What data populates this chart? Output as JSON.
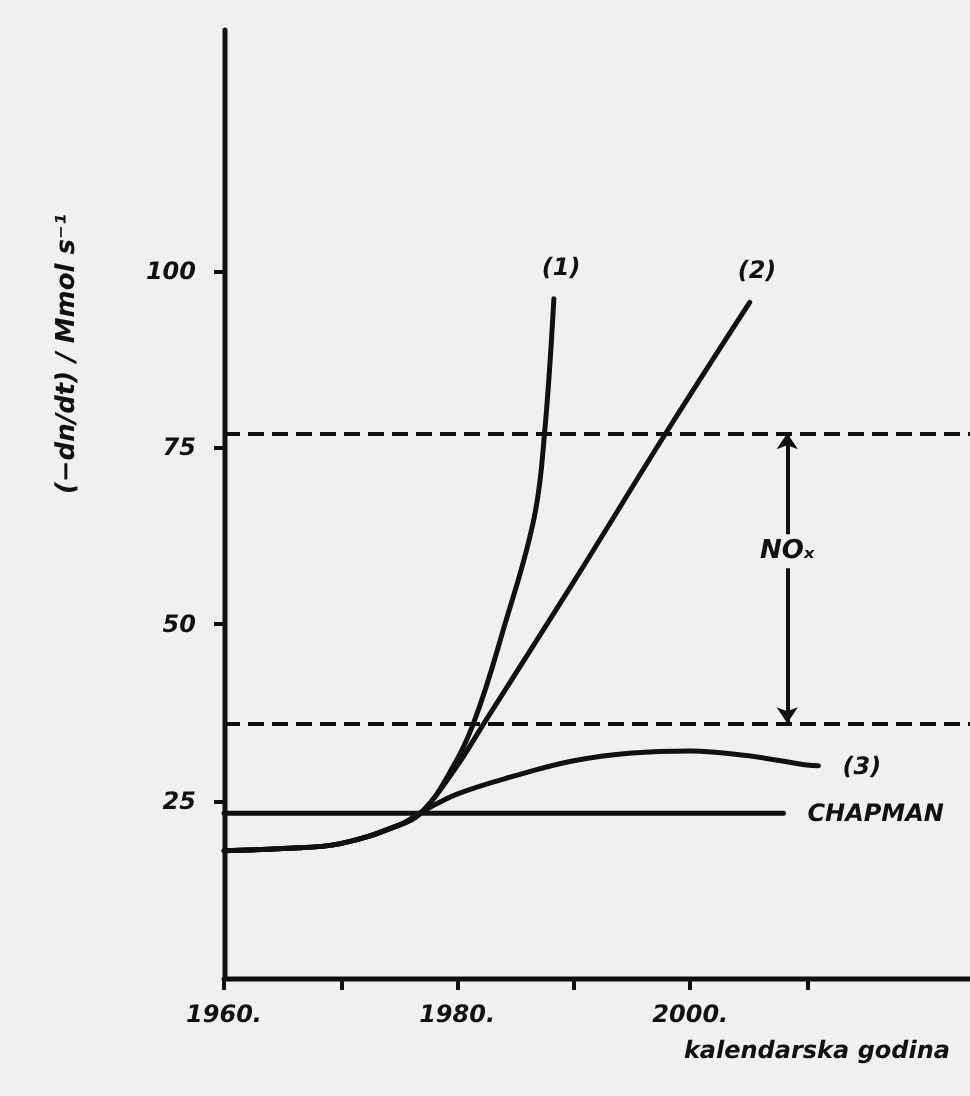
{
  "chart_data": {
    "type": "line",
    "xlabel": "kalendarska godina",
    "ylabel": "(−dn/dt) / Mmol s⁻¹",
    "xlim": [
      1960,
      2024
    ],
    "xticks": [
      {
        "value": 1960,
        "label": "1960."
      },
      {
        "value": 1970,
        "label": null
      },
      {
        "value": 1980,
        "label": "1980."
      },
      {
        "value": 1990,
        "label": null
      },
      {
        "value": 2000,
        "label": "2000."
      },
      {
        "value": 2010,
        "label": null
      }
    ],
    "ylim": [
      0,
      134
    ],
    "yticks": [
      25,
      50,
      75,
      100
    ],
    "series": [
      {
        "name": "(1)",
        "color": "#111111",
        "x": [
          1960,
          1965,
          1970,
          1975,
          1977,
          1979,
          1981.4,
          1984.1,
          1986.6,
          1987.5,
          1988.3
        ],
        "values": [
          18,
          18.3,
          19,
          21.6,
          23.5,
          28,
          36,
          50,
          65,
          77,
          96
        ]
      },
      {
        "name": "(2)",
        "color": "#111111",
        "x": [
          1960,
          1965,
          1970,
          1975,
          1977,
          1980,
          1982.3,
          1990,
          1997.9,
          2005.1
        ],
        "values": [
          18,
          18.3,
          19,
          21.6,
          23.5,
          30,
          36,
          56,
          77,
          95.5
        ]
      },
      {
        "name": "(3)",
        "color": "#111111",
        "x": [
          1960,
          1965,
          1970,
          1975,
          1977,
          1980,
          1985,
          1990,
          1995,
          2000,
          2005,
          2010,
          2011
        ],
        "values": [
          18,
          18.3,
          19,
          21.6,
          23.5,
          26,
          28.6,
          30.7,
          31.8,
          32.1,
          31.4,
          30.1,
          30
        ]
      },
      {
        "name": "CHAPMAN",
        "color": "#111111",
        "x": [
          1960,
          2008
        ],
        "values": [
          23.3,
          23.3
        ]
      }
    ],
    "ref_lines": [
      {
        "axis": "y",
        "value": 77,
        "line_style": "dashed"
      },
      {
        "axis": "y",
        "value": 36,
        "line_style": "dashed"
      }
    ],
    "annotations": [
      "NOₓ"
    ],
    "grid": false,
    "legend": false,
    "marker": "none",
    "line_style": "solid"
  }
}
